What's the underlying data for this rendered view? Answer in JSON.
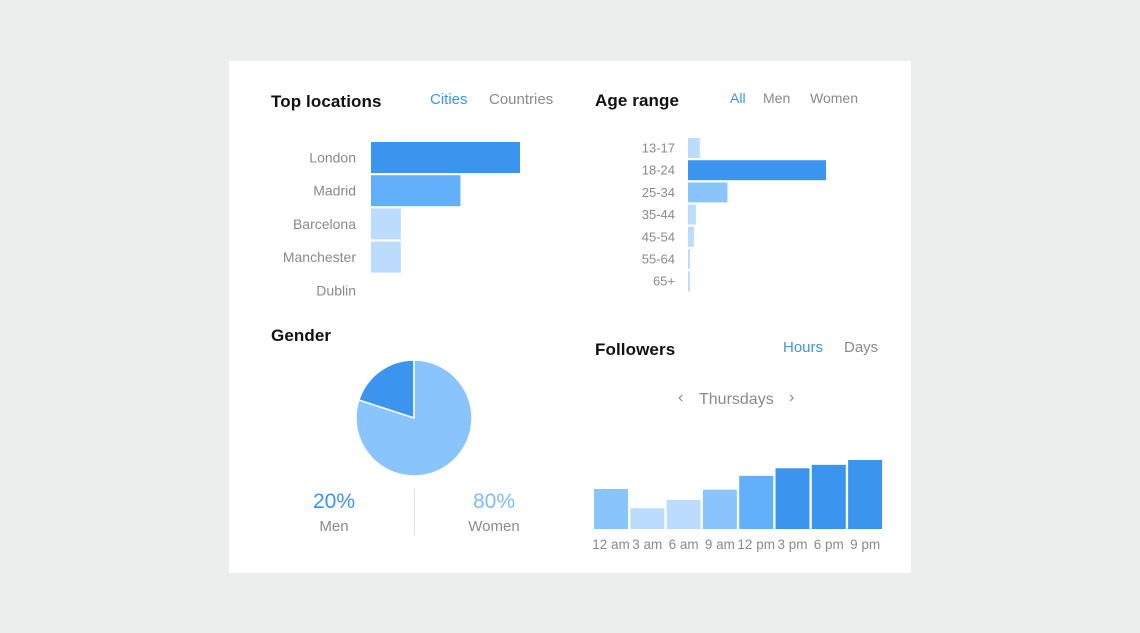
{
  "colors": {
    "dark": "#3b95ee",
    "mid": "#62b0fb",
    "light": "#8ac4fc",
    "pale": "#bcdcfd",
    "text_blue": "#3b95ee",
    "text_lightblue": "#7dbcfa"
  },
  "top_locations": {
    "title": "Top locations",
    "tabs": [
      {
        "label": "Cities",
        "active": true
      },
      {
        "label": "Countries",
        "active": false
      }
    ]
  },
  "age_range": {
    "title": "Age range",
    "tabs": [
      {
        "label": "All",
        "active": true
      },
      {
        "label": "Men",
        "active": false
      },
      {
        "label": "Women",
        "active": false
      }
    ]
  },
  "gender": {
    "title": "Gender",
    "men": {
      "pct": "20%",
      "label": "Men"
    },
    "women": {
      "pct": "80%",
      "label": "Women"
    }
  },
  "followers": {
    "title": "Followers",
    "tabs": [
      {
        "label": "Hours",
        "active": true
      },
      {
        "label": "Days",
        "active": false
      }
    ],
    "day": "Thursdays",
    "prev_icon": "chevron-left-icon",
    "next_icon": "chevron-right-icon"
  },
  "chart_data": [
    {
      "type": "bar",
      "orientation": "horizontal",
      "categories": [
        "London",
        "Madrid",
        "Barcelona",
        "Manchester",
        "Dublin"
      ],
      "values": [
        50,
        30,
        10,
        10,
        0
      ],
      "colors": [
        "#3b95ee",
        "#62b0fb",
        "#bcdcfd",
        "#bcdcfd",
        "#bcdcfd"
      ],
      "xlim": [
        0,
        50
      ]
    },
    {
      "type": "bar",
      "orientation": "horizontal",
      "categories": [
        "13-17",
        "18-24",
        "25-34",
        "35-44",
        "45-54",
        "55-64",
        "65+"
      ],
      "values": [
        3,
        35,
        10,
        2,
        1.5,
        0.5,
        0.5
      ],
      "colors": [
        "#bcdcfd",
        "#3b95ee",
        "#8ac4fc",
        "#bcdcfd",
        "#bcdcfd",
        "#bcdcfd",
        "#bcdcfd"
      ],
      "xlim": [
        0,
        35
      ]
    },
    {
      "type": "pie",
      "categories": [
        "Men",
        "Women"
      ],
      "values": [
        20,
        80
      ],
      "colors": [
        "#3b95ee",
        "#8ac4fc"
      ]
    },
    {
      "type": "bar",
      "categories": [
        "12 am",
        "3 am",
        "6 am",
        "9 am",
        "12 pm",
        "3 pm",
        "6 pm",
        "9 pm"
      ],
      "values": [
        58,
        30,
        42,
        57,
        77,
        88,
        93,
        100
      ],
      "colors": [
        "#8ac4fc",
        "#bcdcfd",
        "#bcdcfd",
        "#8ac4fc",
        "#62b0fb",
        "#3b95ee",
        "#3b95ee",
        "#3b95ee"
      ],
      "ylim": [
        0,
        100
      ]
    }
  ]
}
